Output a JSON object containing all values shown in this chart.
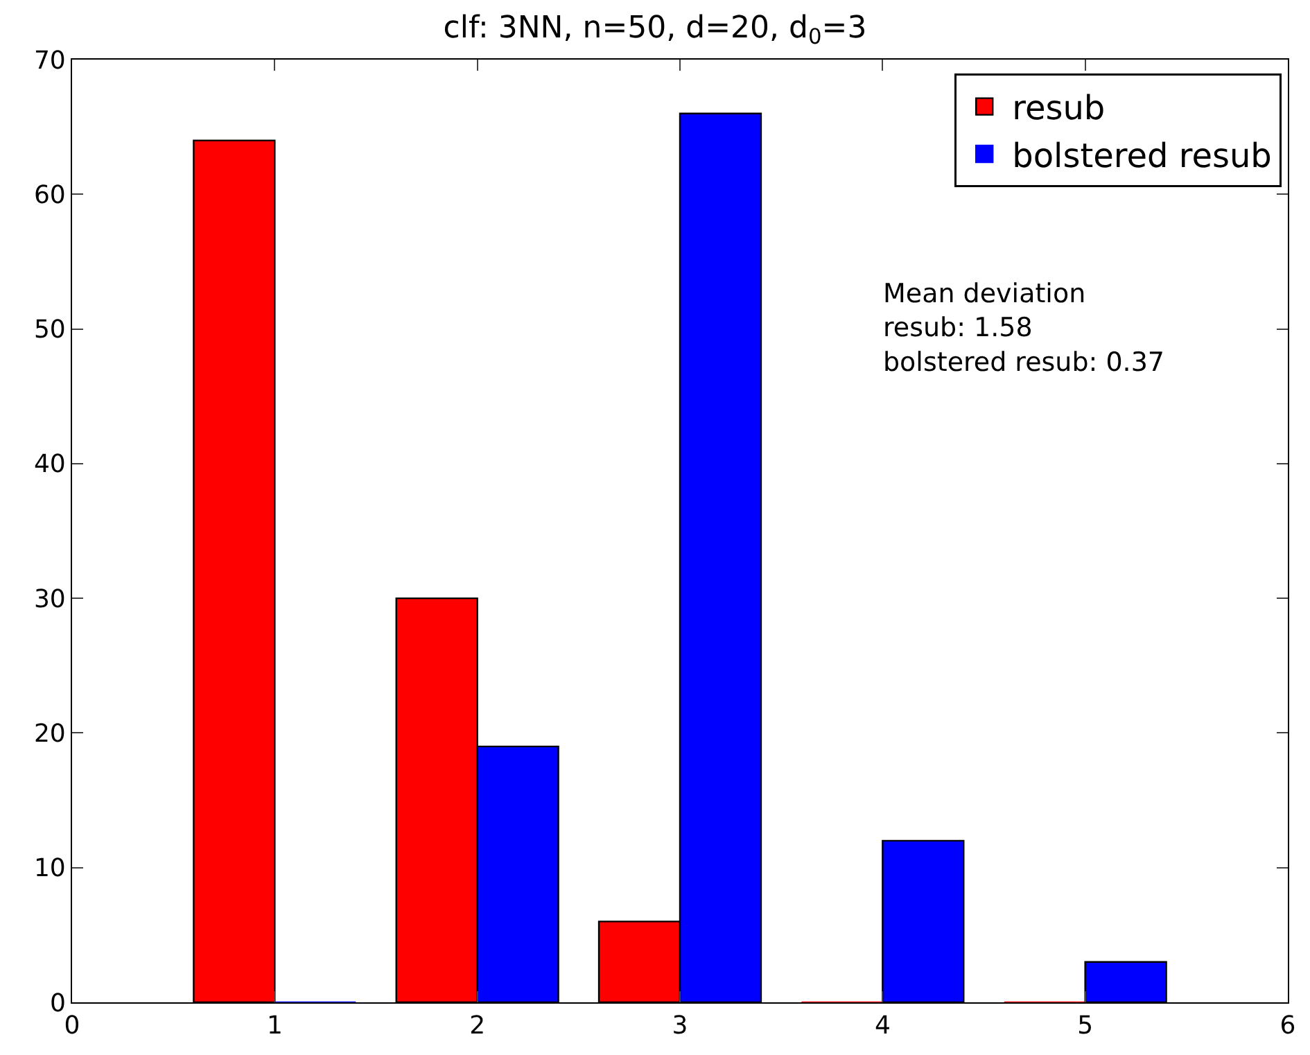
{
  "chart_data": {
    "type": "bar",
    "title": "clf: 3NN, n=50, d=20, d$_{0}$=3",
    "x": [
      1,
      2,
      3,
      4,
      5
    ],
    "series": [
      {
        "name": "resub",
        "color": "#ff0000",
        "values": [
          64,
          30,
          6,
          0,
          0
        ]
      },
      {
        "name": "bolstered resub",
        "color": "#0000ff",
        "values": [
          0,
          19,
          66,
          12,
          3
        ]
      }
    ],
    "xlim": [
      0,
      6
    ],
    "xticks": [
      0,
      1,
      2,
      3,
      4,
      5,
      6
    ],
    "ylim": [
      0,
      70
    ],
    "yticks": [
      0,
      10,
      20,
      30,
      40,
      50,
      60,
      70
    ],
    "legend": "top right",
    "annotations": [
      "Mean deviation\nresub: 1.58\nbolstered resub: 0.37"
    ]
  }
}
